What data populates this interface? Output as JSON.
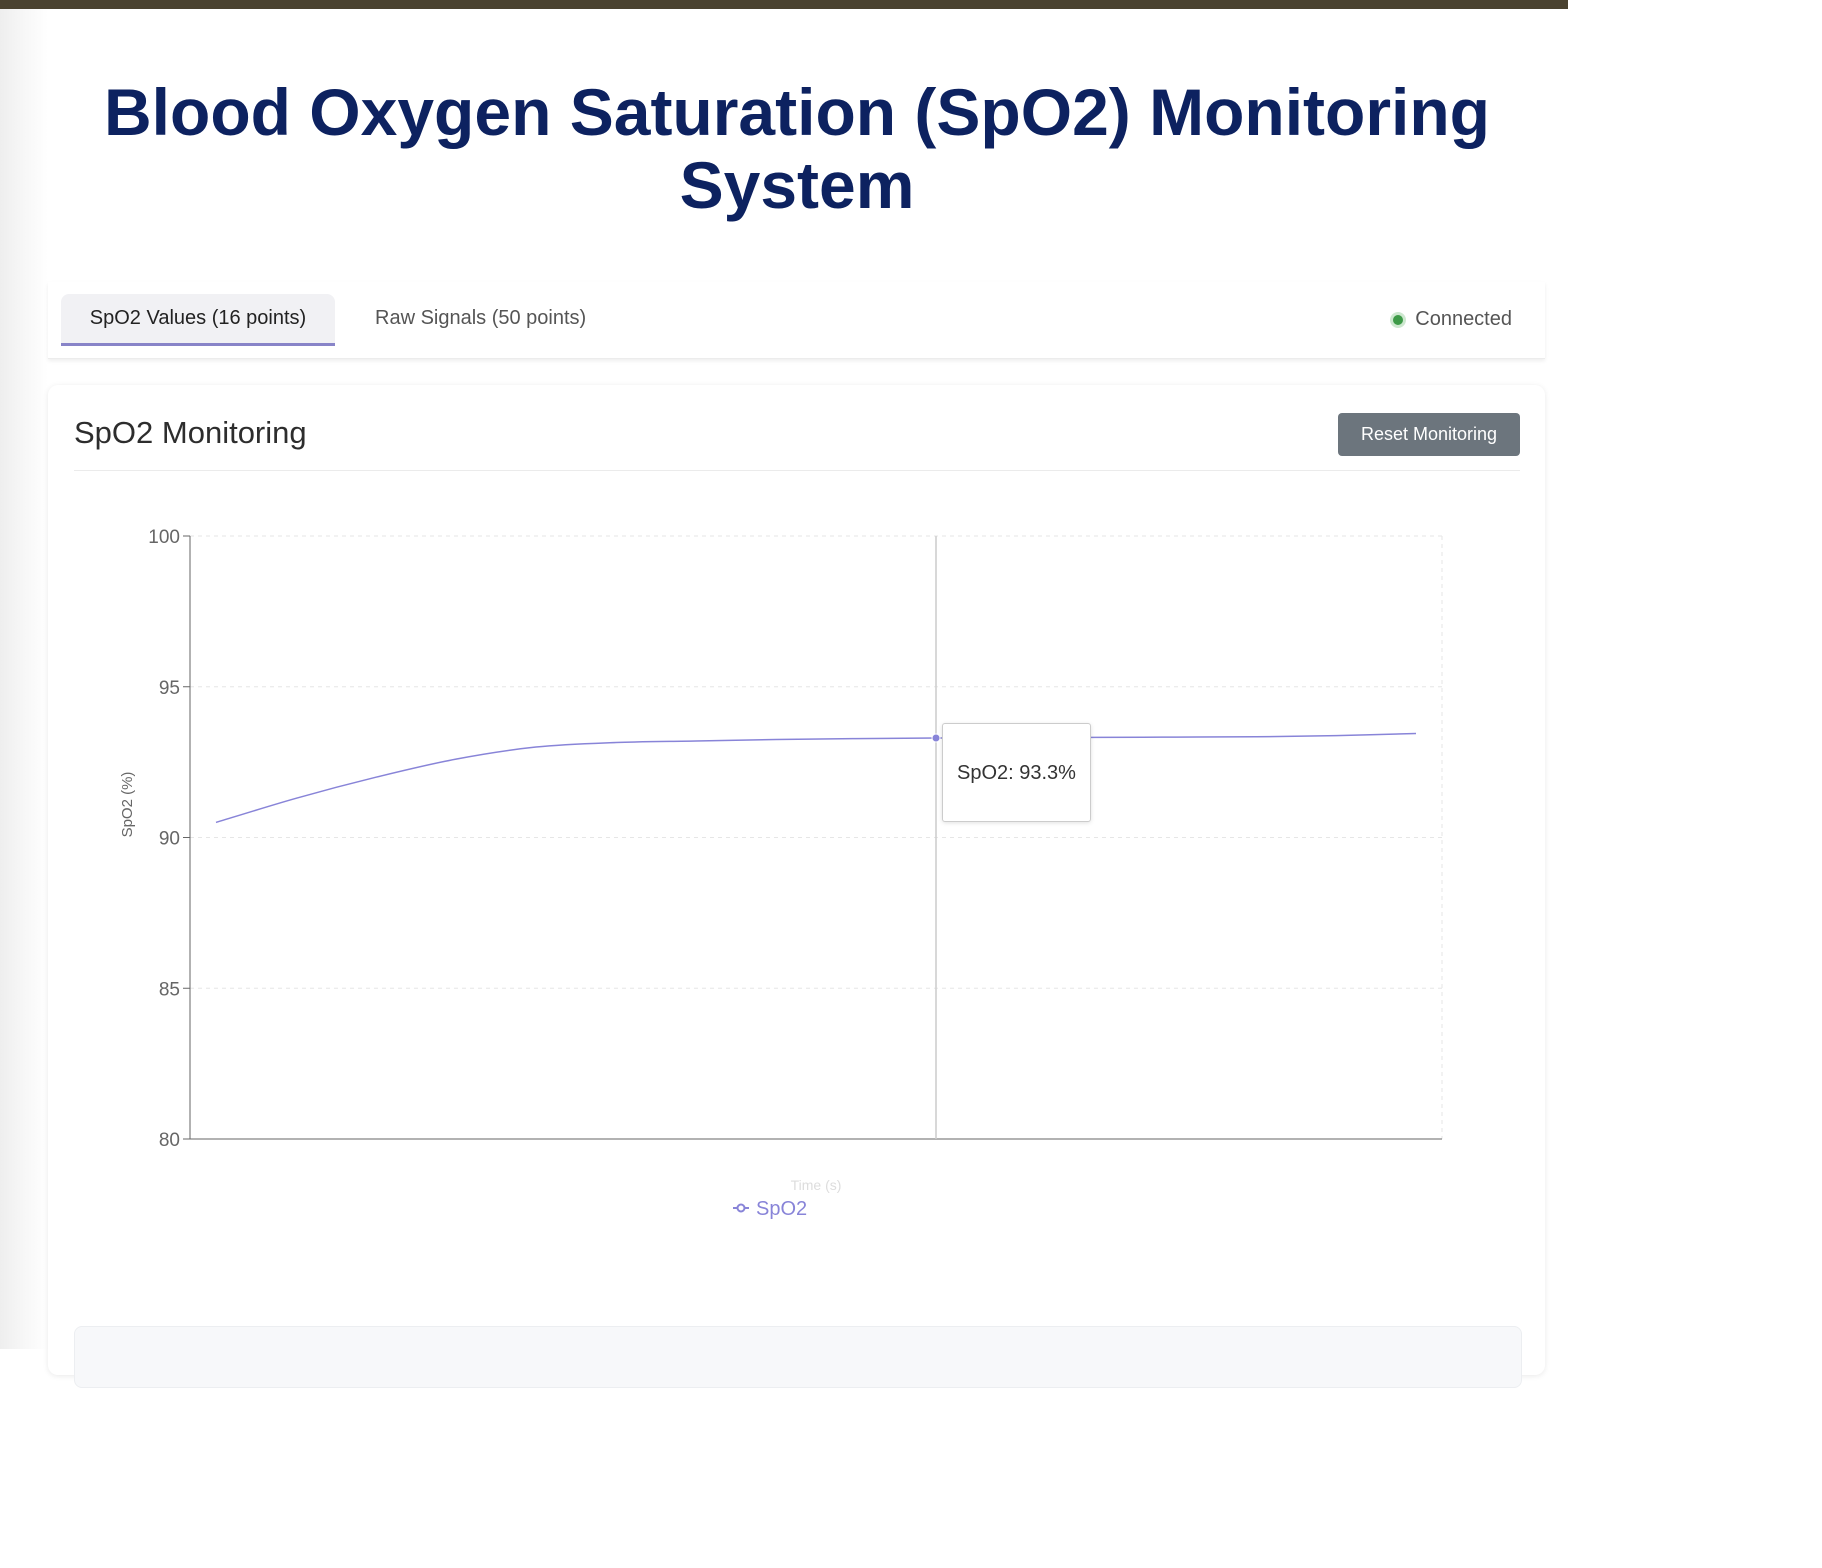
{
  "page": {
    "title": "Blood Oxygen Saturation (SpO2) Monitoring System"
  },
  "tabs": [
    {
      "label": "SpO2 Values (16 points)",
      "active": true
    },
    {
      "label": "Raw Signals (50 points)",
      "active": false
    }
  ],
  "status": {
    "label": "Connected",
    "color": "#3d9a47"
  },
  "panel": {
    "title": "SpO2 Monitoring",
    "reset_label": "Reset Monitoring"
  },
  "tooltip": {
    "text": "SpO2: 93.3%"
  },
  "colors": {
    "title": "#0d2260",
    "series": "#8884d8",
    "button": "#6c757d",
    "top_stripe": "#4a4230"
  },
  "chart_data": {
    "type": "line",
    "ylabel": "SpO2 (%)",
    "xlabel": "Time (s)",
    "ylim": [
      80,
      100
    ],
    "yticks": [
      100,
      95,
      90,
      85,
      80
    ],
    "grid": true,
    "legend": "bottom-center",
    "series": [
      {
        "name": "SpO2",
        "values": [
          90.5,
          91.3,
          92.0,
          92.6,
          93.0,
          93.15,
          93.2,
          93.25,
          93.28,
          93.3,
          93.3,
          93.32,
          93.33,
          93.34,
          93.38,
          93.45
        ]
      }
    ],
    "active_point": 9
  }
}
